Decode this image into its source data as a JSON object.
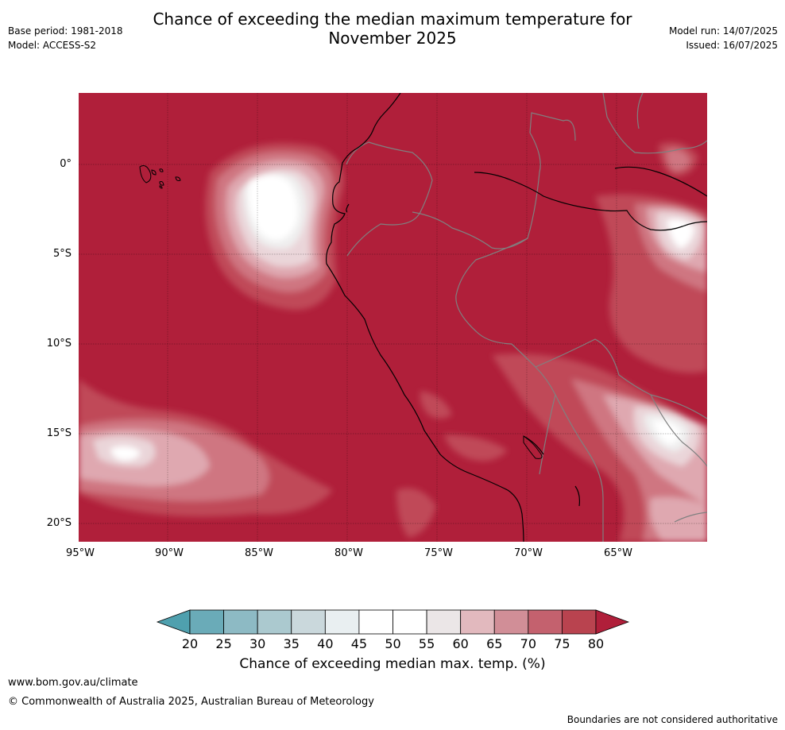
{
  "title_line1": "Chance of exceeding the median maximum temperature for",
  "title_line2": "November 2025",
  "meta_left": [
    "Base period: 1981-2018",
    "Model: ACCESS-S2"
  ],
  "meta_right": [
    "Model run: 14/07/2025",
    "Issued: 16/07/2025"
  ],
  "lat_labels": [
    "0°",
    "5°S",
    "10°S",
    "15°S",
    "20°S"
  ],
  "lon_labels": [
    "95°W",
    "90°W",
    "85°W",
    "80°W",
    "75°W",
    "70°W",
    "65°W"
  ],
  "colorbar": {
    "ticks": [
      "20",
      "25",
      "30",
      "35",
      "40",
      "45",
      "50",
      "55",
      "60",
      "65",
      "70",
      "75",
      "80"
    ],
    "colors": [
      "#6aabb8",
      "#8dbac4",
      "#abc9cf",
      "#cad8dc",
      "#e9eff1",
      "#ffffff",
      "#ffffff",
      "#ebe6e7",
      "#e2b9be",
      "#d18e97",
      "#c4616e",
      "#b9434f"
    ],
    "under_color": "#4fa0ae",
    "over_color": "#b01f3a",
    "title": "Chance of exceeding median max. temp. (%)"
  },
  "map_colors": {
    "base": "#b01f3a",
    "level_75": "#c04a58",
    "level_70": "#cf7681",
    "level_65": "#dfa8b0",
    "level_60": "#ead5d9",
    "level_55": "#efefef",
    "level_50": "#ffffff",
    "coast": "#000000",
    "border": "#808080"
  },
  "footer": {
    "website": "www.bom.gov.au/climate",
    "copyright": "© Commonwealth of Australia 2025, Australian Bureau of Meteorology",
    "disclaimer": "Boundaries are not considered authoritative"
  }
}
